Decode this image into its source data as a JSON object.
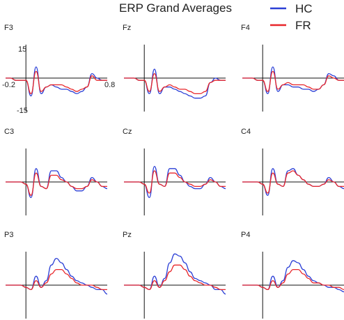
{
  "title": "ERP Grand Averages",
  "legend": [
    {
      "label": "HC",
      "color": "#2b3fd6"
    },
    {
      "label": "FR",
      "color": "#e8262a"
    }
  ],
  "axes": {
    "x_min_label": "-0.2",
    "x_max_label": "0.8",
    "y_max_label": "15",
    "y_min_label": "-15"
  },
  "chart_data": {
    "type": "line",
    "title": "ERP Grand Averages",
    "xlim": [
      -0.2,
      0.8
    ],
    "ylim": [
      -15,
      15
    ],
    "legend_position": "top-right",
    "grid": false,
    "x": [
      -0.2,
      -0.15,
      -0.1,
      -0.05,
      0.0,
      0.05,
      0.1,
      0.15,
      0.2,
      0.25,
      0.3,
      0.35,
      0.4,
      0.45,
      0.5,
      0.55,
      0.6,
      0.65,
      0.7,
      0.75,
      0.8
    ],
    "panels": [
      {
        "label": "F3",
        "series": [
          {
            "name": "HC",
            "values": [
              0,
              0,
              -1,
              -1,
              -1,
              -8,
              5,
              -7,
              -4,
              -3,
              -4,
              -5,
              -5,
              -6,
              -7,
              -6,
              -4,
              2,
              0,
              -1,
              -1
            ]
          },
          {
            "name": "FR",
            "values": [
              0,
              0,
              -1,
              -1,
              -1,
              -7,
              3,
              -6,
              -4,
              -3,
              -3,
              -3,
              -4,
              -5,
              -6,
              -5,
              -4,
              1,
              -1,
              -1,
              -1
            ]
          }
        ]
      },
      {
        "label": "Fz",
        "series": [
          {
            "name": "HC",
            "values": [
              0,
              0,
              0,
              -1,
              -1,
              -7,
              4,
              -7,
              -4,
              -4,
              -5,
              -6,
              -7,
              -8,
              -9,
              -9,
              -8,
              -2,
              0,
              -1,
              -1
            ]
          },
          {
            "name": "FR",
            "values": [
              0,
              0,
              0,
              -1,
              -1,
              -6,
              2,
              -6,
              -4,
              -3,
              -4,
              -5,
              -5,
              -6,
              -7,
              -7,
              -6,
              -2,
              -1,
              -1,
              -1
            ]
          }
        ]
      },
      {
        "label": "F4",
        "series": [
          {
            "name": "HC",
            "values": [
              0,
              0,
              0,
              -1,
              -1,
              -7,
              5,
              -6,
              -3,
              -3,
              -4,
              -4,
              -5,
              -5,
              -6,
              -5,
              -3,
              2,
              1,
              -1,
              -1
            ]
          },
          {
            "name": "FR",
            "values": [
              0,
              0,
              0,
              -1,
              -1,
              -6,
              3,
              -5,
              -3,
              -2,
              -3,
              -3,
              -3,
              -4,
              -5,
              -5,
              -3,
              1,
              0,
              -1,
              -1
            ]
          }
        ]
      },
      {
        "label": "C3",
        "series": [
          {
            "name": "HC",
            "values": [
              0,
              0,
              0,
              0,
              -1,
              -7,
              6,
              -2,
              -3,
              5,
              5,
              2,
              0,
              -2,
              -4,
              -4,
              -2,
              2,
              0,
              -2,
              -3
            ]
          },
          {
            "name": "FR",
            "values": [
              0,
              0,
              0,
              0,
              -1,
              -6,
              4,
              -2,
              -3,
              3,
              3,
              1,
              0,
              -2,
              -3,
              -3,
              -2,
              1,
              0,
              -2,
              -2
            ]
          }
        ]
      },
      {
        "label": "Cz",
        "series": [
          {
            "name": "HC",
            "values": [
              0,
              0,
              0,
              0,
              -1,
              -7,
              7,
              -1,
              -2,
              6,
              6,
              3,
              0,
              -2,
              -3,
              -3,
              -1,
              2,
              0,
              -2,
              -3
            ]
          },
          {
            "name": "FR",
            "values": [
              0,
              0,
              0,
              0,
              -1,
              -5,
              5,
              -1,
              -2,
              4,
              4,
              2,
              0,
              -1,
              -2,
              -2,
              -1,
              1,
              0,
              -2,
              -2
            ]
          }
        ]
      },
      {
        "label": "C4",
        "series": [
          {
            "name": "HC",
            "values": [
              0,
              0,
              0,
              0,
              -1,
              -6,
              6,
              -1,
              -2,
              5,
              6,
              3,
              1,
              -1,
              -2,
              -2,
              -1,
              2,
              0,
              -2,
              -3
            ]
          },
          {
            "name": "FR",
            "values": [
              0,
              0,
              0,
              0,
              -1,
              -5,
              4,
              -1,
              -2,
              4,
              5,
              3,
              1,
              -1,
              -2,
              -2,
              -1,
              1,
              0,
              -2,
              -2
            ]
          }
        ]
      },
      {
        "label": "P3",
        "series": [
          {
            "name": "HC",
            "values": [
              0,
              0,
              0,
              0,
              -1,
              -2,
              4,
              -1,
              2,
              9,
              12,
              10,
              7,
              4,
              2,
              1,
              0,
              -1,
              -2,
              -2,
              -4
            ]
          },
          {
            "name": "FR",
            "values": [
              0,
              0,
              0,
              0,
              -1,
              -2,
              2,
              -1,
              1,
              5,
              7,
              7,
              5,
              3,
              1,
              0,
              0,
              0,
              -1,
              -2,
              -2
            ]
          }
        ]
      },
      {
        "label": "Pz",
        "series": [
          {
            "name": "HC",
            "values": [
              0,
              0,
              0,
              0,
              -1,
              -2,
              4,
              -1,
              3,
              10,
              14,
              13,
              10,
              6,
              3,
              2,
              1,
              0,
              -2,
              -2,
              -4
            ]
          },
          {
            "name": "FR",
            "values": [
              0,
              0,
              0,
              0,
              -1,
              -2,
              2,
              -1,
              2,
              6,
              9,
              9,
              7,
              4,
              2,
              1,
              0,
              0,
              -1,
              -2,
              -2
            ]
          }
        ]
      },
      {
        "label": "P4",
        "series": [
          {
            "name": "HC",
            "values": [
              0,
              0,
              0,
              0,
              -1,
              -2,
              4,
              -1,
              2,
              8,
              11,
              10,
              7,
              4,
              2,
              1,
              0,
              -1,
              -1,
              -2,
              -3
            ]
          },
          {
            "name": "FR",
            "values": [
              0,
              0,
              0,
              0,
              -1,
              -2,
              2,
              -1,
              1,
              5,
              7,
              7,
              5,
              3,
              1,
              1,
              0,
              0,
              -1,
              -1,
              -2
            ]
          }
        ]
      }
    ]
  }
}
